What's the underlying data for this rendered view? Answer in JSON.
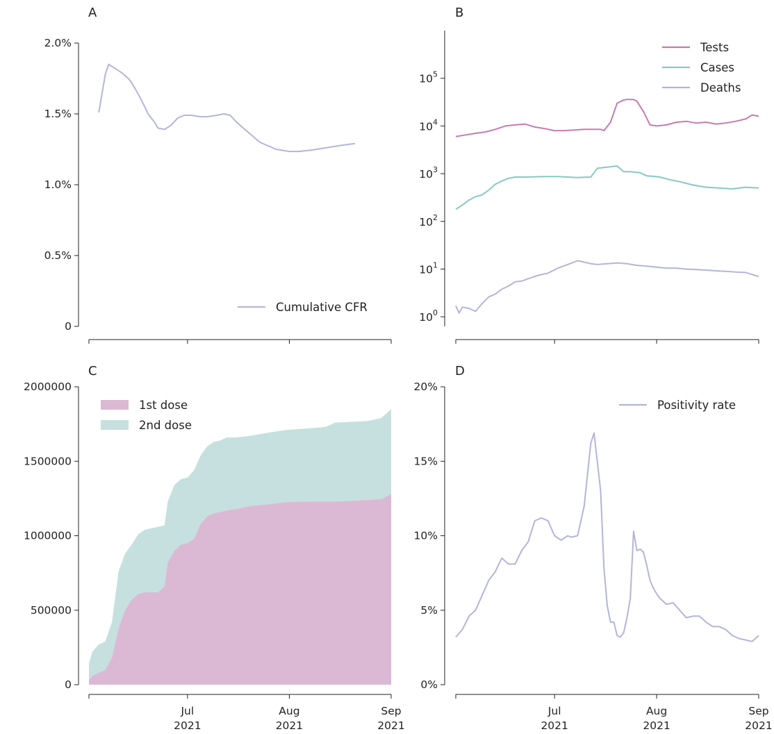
{
  "colors": {
    "tests": "#c87aaf",
    "cases": "#88c8c4",
    "deaths": "#b3b5d9",
    "first_dose_fill": "#dbb9d4",
    "second_dose_fill": "#c5e0df"
  },
  "x_tick_labels": [
    {
      "month": "Jul",
      "year": "2021"
    },
    {
      "month": "Aug",
      "year": "2021"
    },
    {
      "month": "Sep",
      "year": "2021"
    }
  ],
  "chart_data": [
    {
      "panel": "A",
      "type": "line",
      "x_range": [
        "2021-06-01",
        "2021-09-01"
      ],
      "y_range": [
        0,
        2.0
      ],
      "y_tick_values": [
        0,
        0.5,
        1.0,
        1.5,
        2.0
      ],
      "y_tick_labels": [
        "0",
        "0.5%",
        "1.0%",
        "1.5%",
        "2.0%"
      ],
      "legend_position": "bottom-right",
      "series": [
        {
          "name": "Cumulative CFR",
          "color": "#b3b5d9",
          "dates": [
            "2021-06-04",
            "2021-06-06",
            "2021-06-07",
            "2021-06-09",
            "2021-06-11",
            "2021-06-13",
            "2021-06-14",
            "2021-06-16",
            "2021-06-18",
            "2021-06-19",
            "2021-06-21",
            "2021-06-22",
            "2021-06-24",
            "2021-06-26",
            "2021-06-28",
            "2021-06-30",
            "2021-07-02",
            "2021-07-05",
            "2021-07-07",
            "2021-07-10",
            "2021-07-12",
            "2021-07-14",
            "2021-07-16",
            "2021-07-18",
            "2021-07-20",
            "2021-07-23",
            "2021-07-26",
            "2021-07-28",
            "2021-08-01",
            "2021-08-04",
            "2021-08-08",
            "2021-08-12",
            "2021-08-16",
            "2021-08-19",
            "2021-08-21"
          ],
          "values": [
            1.51,
            1.78,
            1.85,
            1.82,
            1.79,
            1.75,
            1.72,
            1.64,
            1.55,
            1.5,
            1.44,
            1.4,
            1.39,
            1.42,
            1.47,
            1.49,
            1.49,
            1.48,
            1.48,
            1.49,
            1.5,
            1.49,
            1.44,
            1.4,
            1.36,
            1.3,
            1.27,
            1.25,
            1.235,
            1.235,
            1.245,
            1.26,
            1.275,
            1.285,
            1.29
          ]
        }
      ]
    },
    {
      "panel": "B",
      "type": "line",
      "y_scale": "log",
      "x_range": [
        "2021-06-01",
        "2021-09-01"
      ],
      "y_range": [
        0.63,
        1000000
      ],
      "y_tick_values": [
        1,
        10,
        100,
        1000,
        10000,
        100000
      ],
      "y_tick_labels": [
        "10^0",
        "10^1",
        "10^2",
        "10^3",
        "10^4",
        "10^5"
      ],
      "legend_position": "top-right",
      "series": [
        {
          "name": "Tests",
          "color": "#c87aaf",
          "dates": [
            "2021-06-01",
            "2021-06-04",
            "2021-06-07",
            "2021-06-10",
            "2021-06-13",
            "2021-06-16",
            "2021-06-19",
            "2021-06-22",
            "2021-06-25",
            "2021-06-28",
            "2021-07-01",
            "2021-07-04",
            "2021-07-07",
            "2021-07-10",
            "2021-07-13",
            "2021-07-15",
            "2021-07-16",
            "2021-07-18",
            "2021-07-20",
            "2021-07-22",
            "2021-07-23",
            "2021-07-25",
            "2021-07-26",
            "2021-07-28",
            "2021-07-30",
            "2021-08-01",
            "2021-08-04",
            "2021-08-07",
            "2021-08-10",
            "2021-08-13",
            "2021-08-16",
            "2021-08-19",
            "2021-08-22",
            "2021-08-25",
            "2021-08-28",
            "2021-08-30",
            "2021-09-01"
          ],
          "values": [
            6000,
            6500,
            7000,
            7500,
            8500,
            10000,
            10500,
            11000,
            9500,
            8800,
            8000,
            8000,
            8200,
            8500,
            8500,
            8500,
            8000,
            12000,
            30000,
            35000,
            36000,
            36000,
            33000,
            20000,
            10500,
            10000,
            10500,
            12000,
            12500,
            11500,
            12000,
            11000,
            11500,
            12500,
            14000,
            17000,
            16000
          ]
        },
        {
          "name": "Cases",
          "color": "#88c8c4",
          "dates": [
            "2021-06-01",
            "2021-06-03",
            "2021-06-05",
            "2021-06-07",
            "2021-06-09",
            "2021-06-11",
            "2021-06-13",
            "2021-06-15",
            "2021-06-17",
            "2021-06-19",
            "2021-06-22",
            "2021-06-25",
            "2021-06-28",
            "2021-07-02",
            "2021-07-05",
            "2021-07-08",
            "2021-07-10",
            "2021-07-12",
            "2021-07-14",
            "2021-07-16",
            "2021-07-18",
            "2021-07-20",
            "2021-07-22",
            "2021-07-24",
            "2021-07-25",
            "2021-07-27",
            "2021-07-29",
            "2021-07-31",
            "2021-08-02",
            "2021-08-05",
            "2021-08-08",
            "2021-08-12",
            "2021-08-16",
            "2021-08-20",
            "2021-08-24",
            "2021-08-28",
            "2021-09-01"
          ],
          "values": [
            180,
            220,
            280,
            330,
            360,
            450,
            600,
            700,
            800,
            850,
            850,
            860,
            870,
            870,
            850,
            830,
            840,
            850,
            1300,
            1350,
            1400,
            1450,
            1100,
            1100,
            1080,
            1050,
            900,
            880,
            850,
            750,
            680,
            580,
            520,
            500,
            480,
            520,
            500
          ]
        },
        {
          "name": "Deaths",
          "color": "#b3b5d9",
          "dates": [
            "2021-06-01",
            "2021-06-02",
            "2021-06-03",
            "2021-06-05",
            "2021-06-07",
            "2021-06-09",
            "2021-06-11",
            "2021-06-13",
            "2021-06-15",
            "2021-06-17",
            "2021-06-19",
            "2021-06-21",
            "2021-06-23",
            "2021-06-26",
            "2021-06-29",
            "2021-07-02",
            "2021-07-05",
            "2021-07-08",
            "2021-07-10",
            "2021-07-12",
            "2021-07-14",
            "2021-07-17",
            "2021-07-20",
            "2021-07-23",
            "2021-07-26",
            "2021-07-29",
            "2021-08-01",
            "2021-08-04",
            "2021-08-07",
            "2021-08-10",
            "2021-08-13",
            "2021-08-16",
            "2021-08-19",
            "2021-08-22",
            "2021-08-25",
            "2021-08-28",
            "2021-09-01"
          ],
          "values": [
            1.7,
            1.2,
            1.6,
            1.5,
            1.3,
            1.9,
            2.6,
            3.0,
            3.8,
            4.4,
            5.4,
            5.6,
            6.3,
            7.4,
            8.2,
            10.5,
            12.5,
            15,
            14,
            13,
            12.5,
            13,
            13.5,
            13,
            12,
            11.5,
            11,
            10.5,
            10.5,
            10,
            9.8,
            9.5,
            9.2,
            9,
            8.7,
            8.5,
            7
          ]
        }
      ]
    },
    {
      "panel": "C",
      "type": "area",
      "stacked": true,
      "x_range": [
        "2021-06-01",
        "2021-09-01"
      ],
      "y_range": [
        0,
        2000000
      ],
      "y_tick_values": [
        0,
        500000,
        1000000,
        1500000,
        2000000
      ],
      "y_tick_labels": [
        "0",
        "500000",
        "1000000",
        "1500000",
        "2000000"
      ],
      "legend_position": "top-left",
      "dates": [
        "2021-06-01",
        "2021-06-02",
        "2021-06-04",
        "2021-06-06",
        "2021-06-08",
        "2021-06-10",
        "2021-06-12",
        "2021-06-14",
        "2021-06-16",
        "2021-06-18",
        "2021-06-20",
        "2021-06-22",
        "2021-06-24",
        "2021-06-25",
        "2021-06-27",
        "2021-06-29",
        "2021-07-01",
        "2021-07-03",
        "2021-07-05",
        "2021-07-07",
        "2021-07-09",
        "2021-07-11",
        "2021-07-13",
        "2021-07-16",
        "2021-07-20",
        "2021-07-25",
        "2021-07-31",
        "2021-08-06",
        "2021-08-12",
        "2021-08-15",
        "2021-08-20",
        "2021-08-25",
        "2021-08-29",
        "2021-09-01"
      ],
      "series": [
        {
          "name": "1st dose",
          "color": "#dbb9d4",
          "values": [
            30000,
            60000,
            80000,
            100000,
            180000,
            380000,
            500000,
            570000,
            610000,
            620000,
            620000,
            620000,
            660000,
            820000,
            900000,
            940000,
            950000,
            980000,
            1080000,
            1130000,
            1150000,
            1160000,
            1170000,
            1180000,
            1200000,
            1210000,
            1225000,
            1230000,
            1230000,
            1230000,
            1235000,
            1240000,
            1245000,
            1280000
          ]
        },
        {
          "name": "2nd dose",
          "color": "#c5e0df",
          "values": [
            110000,
            160000,
            190000,
            190000,
            240000,
            380000,
            380000,
            370000,
            400000,
            420000,
            430000,
            440000,
            410000,
            410000,
            440000,
            440000,
            440000,
            460000,
            460000,
            470000,
            480000,
            480000,
            490000,
            480000,
            470000,
            480000,
            485000,
            490000,
            500000,
            530000,
            530000,
            530000,
            545000,
            570000
          ]
        }
      ]
    },
    {
      "panel": "D",
      "type": "line",
      "x_range": [
        "2021-06-01",
        "2021-09-01"
      ],
      "y_range": [
        0,
        20
      ],
      "y_tick_values": [
        0,
        5,
        10,
        15,
        20
      ],
      "y_tick_labels": [
        "0%",
        "5%",
        "10%",
        "15%",
        "20%"
      ],
      "legend_position": "top-right",
      "series": [
        {
          "name": "Positivity rate",
          "color": "#b3b5d9",
          "dates": [
            "2021-06-01",
            "2021-06-03",
            "2021-06-05",
            "2021-06-07",
            "2021-06-09",
            "2021-06-11",
            "2021-06-13",
            "2021-06-15",
            "2021-06-17",
            "2021-06-19",
            "2021-06-21",
            "2021-06-23",
            "2021-06-25",
            "2021-06-27",
            "2021-06-29",
            "2021-07-01",
            "2021-07-03",
            "2021-07-05",
            "2021-07-06",
            "2021-07-08",
            "2021-07-10",
            "2021-07-12",
            "2021-07-13",
            "2021-07-15",
            "2021-07-16",
            "2021-07-17",
            "2021-07-18",
            "2021-07-19",
            "2021-07-20",
            "2021-07-21",
            "2021-07-22",
            "2021-07-23",
            "2021-07-24",
            "2021-07-25",
            "2021-07-26",
            "2021-07-27",
            "2021-07-28",
            "2021-07-29",
            "2021-07-30",
            "2021-07-31",
            "2021-08-01",
            "2021-08-02",
            "2021-08-04",
            "2021-08-06",
            "2021-08-08",
            "2021-08-10",
            "2021-08-12",
            "2021-08-14",
            "2021-08-16",
            "2021-08-18",
            "2021-08-20",
            "2021-08-22",
            "2021-08-24",
            "2021-08-26",
            "2021-08-28",
            "2021-08-30",
            "2021-09-01"
          ],
          "values": [
            3.2,
            3.7,
            4.6,
            5.0,
            6.0,
            7.0,
            7.6,
            8.5,
            8.1,
            8.1,
            9.0,
            9.6,
            11.0,
            11.2,
            11.0,
            10.0,
            9.7,
            10.0,
            9.9,
            10.0,
            12.0,
            16.2,
            16.9,
            13.0,
            7.8,
            5.3,
            4.2,
            4.2,
            3.3,
            3.2,
            3.5,
            4.5,
            5.8,
            10.3,
            9.0,
            9.1,
            8.9,
            8.0,
            7.0,
            6.5,
            6.1,
            5.8,
            5.4,
            5.5,
            5.0,
            4.5,
            4.6,
            4.6,
            4.2,
            3.9,
            3.9,
            3.7,
            3.3,
            3.1,
            3.0,
            2.9,
            3.3
          ]
        }
      ]
    }
  ]
}
